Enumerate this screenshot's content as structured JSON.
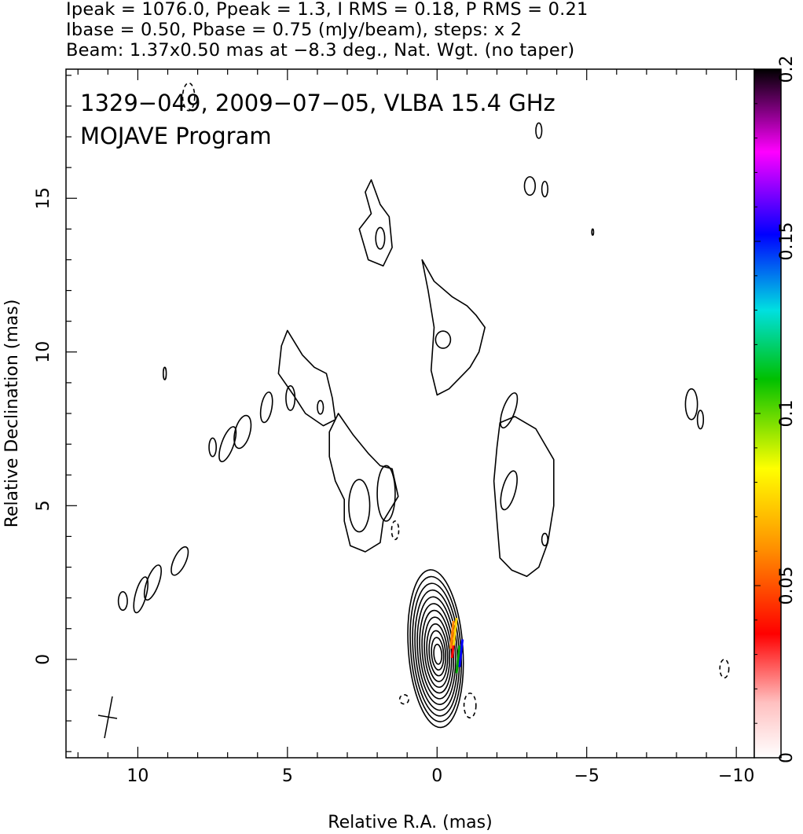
{
  "header": {
    "line1": "Ipeak = 1076.0, Ppeak = 1.3, I RMS = 0.18, P RMS = 0.21",
    "line2": "Ibase = 0.50, Pbase = 0.75 (mJy/beam), steps: x 2",
    "line3": "Beam: 1.37x0.50 mas at −8.3 deg., Nat. Wgt. (no taper)"
  },
  "chart_data": {
    "type": "contour",
    "title": "1329−049, 2009−07−05, VLBA 15.4 GHz",
    "subtitle": "MOJAVE Program",
    "xlabel": "Relative R.A. (mas)",
    "ylabel": "Relative Declination (mas)",
    "xlim": [
      12.4,
      -10.6
    ],
    "ylim": [
      -3.2,
      19.2
    ],
    "x_ticks": [
      10,
      5,
      0,
      -5,
      -10
    ],
    "x_tick_labels": [
      "10",
      "5",
      "0",
      "−5",
      "−10"
    ],
    "y_ticks": [
      0,
      5,
      10,
      15
    ],
    "y_tick_labels": [
      "0",
      "5",
      "10",
      "15"
    ],
    "colorbar": {
      "min": 0,
      "max": 0.2,
      "ticks": [
        0,
        0.05,
        0.1,
        0.15,
        0.2
      ],
      "tick_labels": [
        "0",
        "0.05",
        "0.1",
        "0.15",
        "0.2"
      ]
    },
    "peak_intensity_mJy_per_beam": 1076.0,
    "peak_polarized_mJy_per_beam": 1.3,
    "contour_base_mJy_per_beam": 0.5,
    "contour_step_factor": 2,
    "core_contour_count": 12,
    "beam": {
      "major_mas": 1.37,
      "minor_mas": 0.5,
      "pa_deg": -8.3
    }
  },
  "colors": {
    "contour": "#000000",
    "colorbar_scale": [
      "#ffffff",
      "#ff0000",
      "#ffa500",
      "#ffff00",
      "#00c000",
      "#00ffff",
      "#0000ff",
      "#ff00ff",
      "#000000"
    ]
  }
}
